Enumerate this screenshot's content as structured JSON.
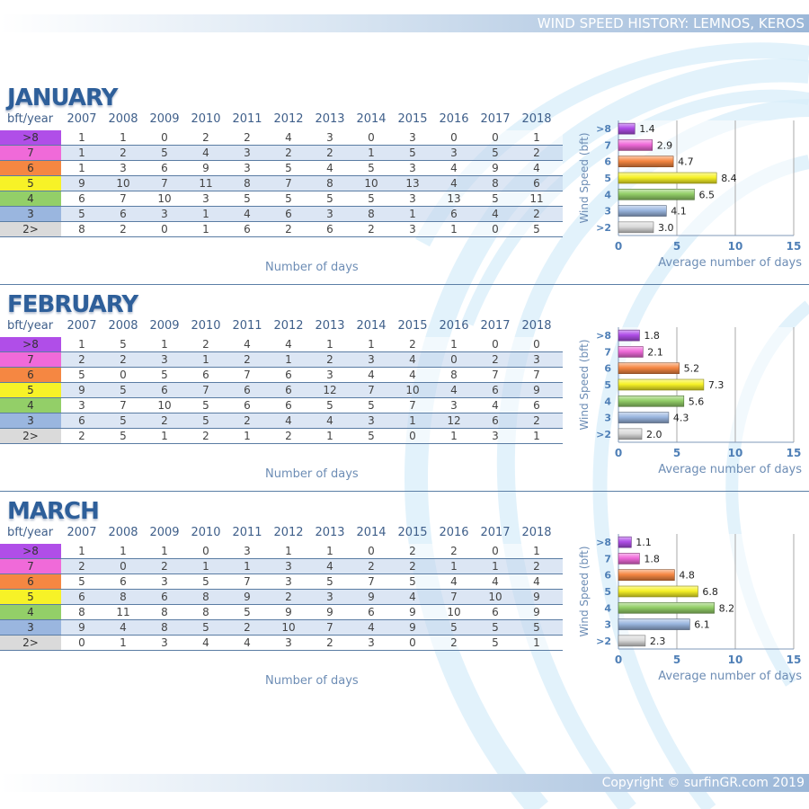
{
  "header": {
    "title": "WIND SPEED HISTORY: LEMNOS, KEROS"
  },
  "footer": {
    "copyright": "Copyright © surfinGR.com 2019"
  },
  "colors": {
    "title": "#2e5f9a",
    "accent": "#5b7fa6",
    "text": "#444444"
  },
  "table": {
    "corner": "bft/year",
    "years": [
      "2007",
      "2008",
      "2009",
      "2010",
      "2011",
      "2012",
      "2013",
      "2014",
      "2015",
      "2016",
      "2017",
      "2018"
    ],
    "footnote": "Number of days",
    "levels": [
      {
        "label": ">8",
        "color": "#b04ee8"
      },
      {
        "label": "7",
        "color": "#f06ad9"
      },
      {
        "label": "6",
        "color": "#f58742"
      },
      {
        "label": "5",
        "color": "#f7f227"
      },
      {
        "label": "4",
        "color": "#93cf68"
      },
      {
        "label": "3",
        "color": "#9ab6df"
      },
      {
        "label": "2>",
        "color": "#dadada"
      }
    ]
  },
  "chart_axis": {
    "ylabel": "Wind Speed (bft)",
    "xlabel": "Average number of days",
    "xticks": [
      "0",
      "5",
      "10",
      "15"
    ],
    "xlim": [
      0,
      15
    ],
    "categories": [
      ">8",
      "7",
      "6",
      "5",
      "4",
      "3",
      ">2"
    ]
  },
  "months": [
    {
      "name": "JANUARY",
      "rows": [
        [
          "1",
          "1",
          "0",
          "2",
          "2",
          "4",
          "3",
          "0",
          "3",
          "0",
          "0",
          "1"
        ],
        [
          "1",
          "2",
          "5",
          "4",
          "3",
          "2",
          "2",
          "1",
          "5",
          "3",
          "5",
          "2"
        ],
        [
          "1",
          "3",
          "6",
          "9",
          "3",
          "5",
          "4",
          "5",
          "3",
          "4",
          "9",
          "4"
        ],
        [
          "9",
          "10",
          "7",
          "11",
          "8",
          "7",
          "8",
          "10",
          "13",
          "4",
          "8",
          "6"
        ],
        [
          "6",
          "7",
          "10",
          "3",
          "5",
          "5",
          "5",
          "5",
          "3",
          "13",
          "5",
          "11"
        ],
        [
          "5",
          "6",
          "3",
          "1",
          "4",
          "6",
          "3",
          "8",
          "1",
          "6",
          "4",
          "2"
        ],
        [
          "8",
          "2",
          "0",
          "1",
          "6",
          "2",
          "6",
          "2",
          "3",
          "1",
          "0",
          "5"
        ]
      ]
    },
    {
      "name": "FEBRUARY",
      "rows": [
        [
          "1",
          "5",
          "1",
          "2",
          "4",
          "4",
          "1",
          "1",
          "2",
          "1",
          "0",
          "0"
        ],
        [
          "2",
          "2",
          "3",
          "1",
          "2",
          "1",
          "2",
          "3",
          "4",
          "0",
          "2",
          "3"
        ],
        [
          "5",
          "0",
          "5",
          "6",
          "7",
          "6",
          "3",
          "4",
          "4",
          "8",
          "7",
          "7"
        ],
        [
          "9",
          "5",
          "6",
          "7",
          "6",
          "6",
          "12",
          "7",
          "10",
          "4",
          "6",
          "9"
        ],
        [
          "3",
          "7",
          "10",
          "5",
          "6",
          "6",
          "5",
          "5",
          "7",
          "3",
          "4",
          "6"
        ],
        [
          "6",
          "5",
          "2",
          "5",
          "2",
          "4",
          "4",
          "3",
          "1",
          "12",
          "6",
          "2"
        ],
        [
          "2",
          "5",
          "1",
          "2",
          "1",
          "2",
          "1",
          "5",
          "0",
          "1",
          "3",
          "1"
        ]
      ]
    },
    {
      "name": "MARCH",
      "rows": [
        [
          "1",
          "1",
          "1",
          "0",
          "3",
          "1",
          "1",
          "0",
          "2",
          "2",
          "0",
          "1"
        ],
        [
          "2",
          "0",
          "2",
          "1",
          "1",
          "3",
          "4",
          "2",
          "2",
          "1",
          "1",
          "2"
        ],
        [
          "5",
          "6",
          "3",
          "5",
          "7",
          "3",
          "5",
          "7",
          "5",
          "4",
          "4",
          "4"
        ],
        [
          "6",
          "8",
          "6",
          "8",
          "9",
          "2",
          "3",
          "9",
          "4",
          "7",
          "10",
          "9"
        ],
        [
          "8",
          "11",
          "8",
          "8",
          "5",
          "9",
          "9",
          "6",
          "9",
          "10",
          "6",
          "9"
        ],
        [
          "9",
          "4",
          "8",
          "5",
          "2",
          "10",
          "7",
          "4",
          "9",
          "5",
          "5",
          "5"
        ],
        [
          "0",
          "1",
          "3",
          "4",
          "4",
          "3",
          "2",
          "3",
          "0",
          "2",
          "5",
          "1"
        ]
      ]
    }
  ],
  "chart_data": [
    {
      "type": "bar",
      "orientation": "horizontal",
      "xlabel": "Average number of days",
      "ylabel": "Wind Speed (bft)",
      "categories": [
        ">8",
        "7",
        "6",
        "5",
        "4",
        "3",
        ">2"
      ],
      "values": [
        1.4,
        2.9,
        4.7,
        8.4,
        6.5,
        4.1,
        3.0
      ],
      "value_labels": [
        "1.4",
        "2.9",
        "4.7",
        "8.4",
        "6.5",
        "4.1",
        "3.0"
      ],
      "xlim": [
        0,
        15
      ],
      "grid": true
    },
    {
      "type": "bar",
      "orientation": "horizontal",
      "xlabel": "Average number of days",
      "ylabel": "Wind Speed (bft)",
      "categories": [
        ">8",
        "7",
        "6",
        "5",
        "4",
        "3",
        ">2"
      ],
      "values": [
        1.8,
        2.1,
        5.2,
        7.3,
        5.6,
        4.3,
        2.0
      ],
      "value_labels": [
        "1.8",
        "2.1",
        "5.2",
        "7.3",
        "5.6",
        "4.3",
        "2.0"
      ],
      "xlim": [
        0,
        15
      ],
      "grid": true
    },
    {
      "type": "bar",
      "orientation": "horizontal",
      "xlabel": "Average number of days",
      "ylabel": "Wind Speed (bft)",
      "categories": [
        ">8",
        "7",
        "6",
        "5",
        "4",
        "3",
        ">2"
      ],
      "values": [
        1.1,
        1.8,
        4.8,
        6.8,
        8.2,
        6.1,
        2.3
      ],
      "value_labels": [
        "1.1",
        "1.8",
        "4.8",
        "6.8",
        "8.2",
        "6.1",
        "2.3"
      ],
      "xlim": [
        0,
        15
      ],
      "grid": true
    }
  ]
}
